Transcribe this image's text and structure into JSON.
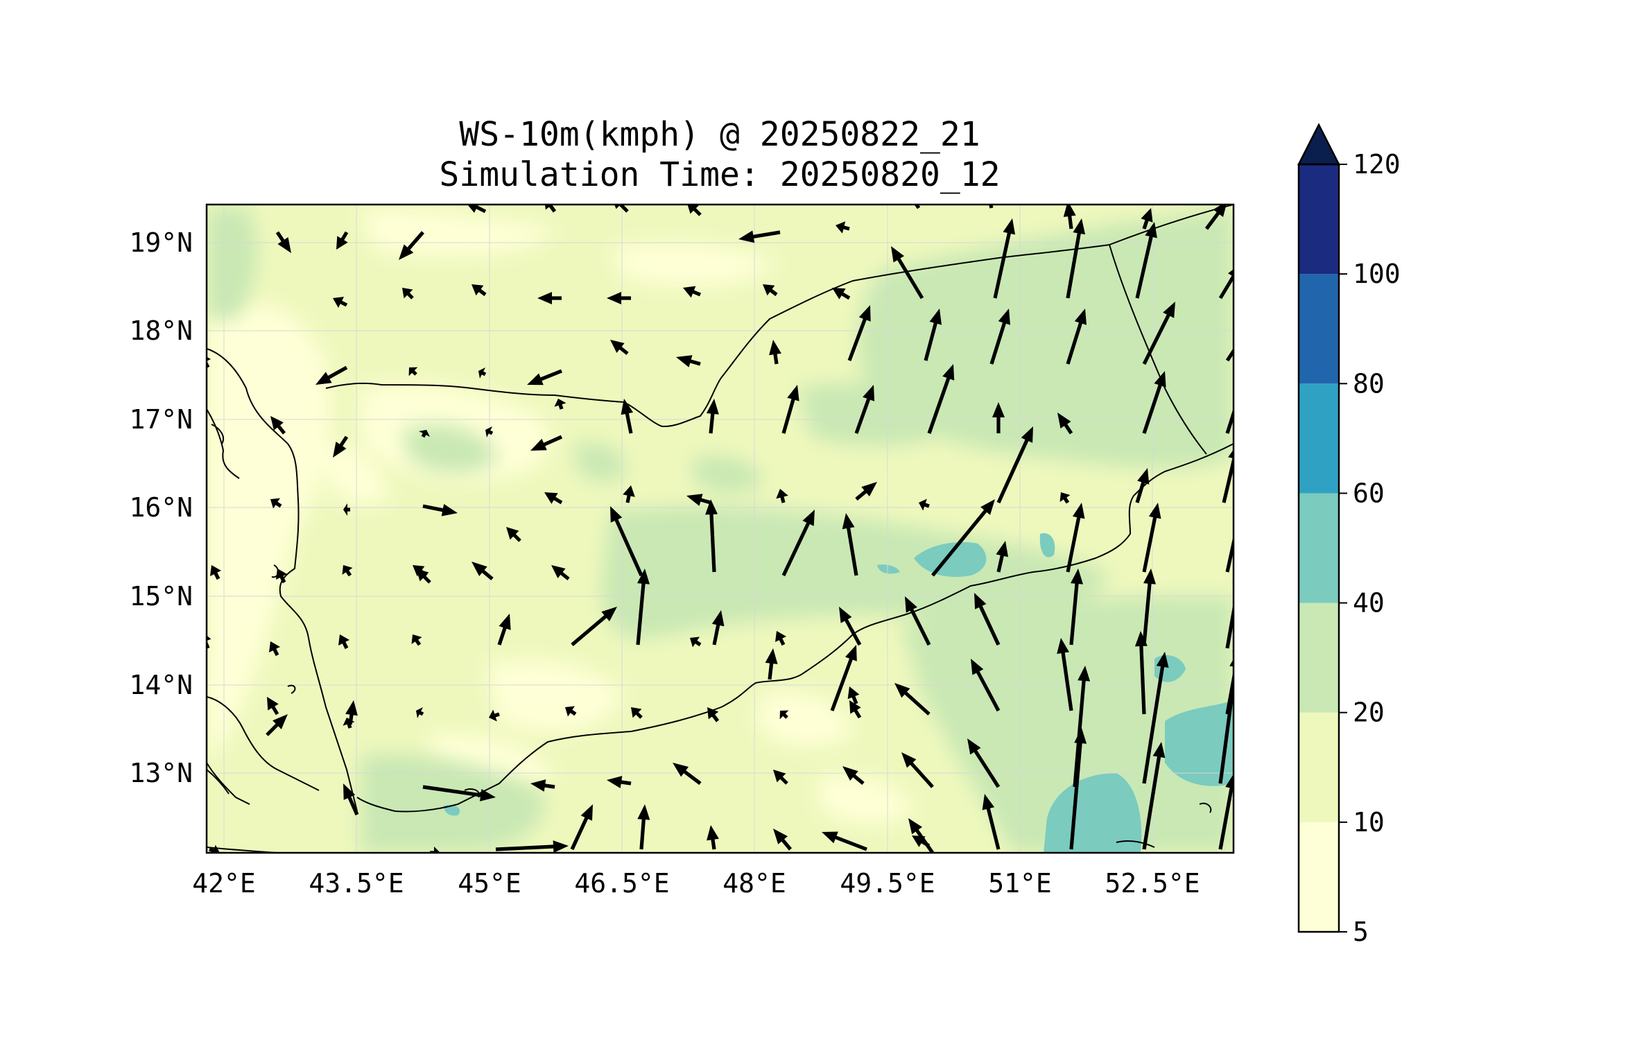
{
  "title_line1": "WS-10m(kmph) @ 20250822_21",
  "title_line2": "Simulation Time: 20250820_12",
  "chart_data": {
    "type": "heatmap",
    "map": "wind speed at 10 m with wind vectors, Yemen / southern Arabian Peninsula",
    "lon_range": [
      41.9,
      53.5
    ],
    "lat_range": [
      12.1,
      19.45
    ],
    "lon_ticks": [
      "42°E",
      "43.5°E",
      "45°E",
      "46.5°E",
      "48°E",
      "49.5°E",
      "51°E",
      "52.5°E"
    ],
    "lon_tick_values": [
      42,
      43.5,
      45,
      46.5,
      48,
      49.5,
      51,
      52.5
    ],
    "lat_ticks": [
      "13°N",
      "14°N",
      "15°N",
      "16°N",
      "17°N",
      "18°N",
      "19°N"
    ],
    "lat_tick_values": [
      13,
      14,
      15,
      16,
      17,
      18,
      19
    ],
    "grid": true,
    "colorbar": {
      "levels": [
        5,
        10,
        20,
        40,
        60,
        80,
        100,
        120
      ],
      "tick_labels": [
        "5",
        "10",
        "20",
        "40",
        "60",
        "80",
        "100",
        "120"
      ],
      "colors": [
        "#feffd6",
        "#eef8bd",
        "#c9e8b4",
        "#7bcbbf",
        "#2fa2c4",
        "#2166ac",
        "#1b2b80"
      ],
      "extend_color": "#0a1f4e",
      "extend": "max"
    },
    "strong_wind_region": "40-60 kmph patches near 15.3°N 50.5°E and along southeast coast near 52-53.5°E"
  }
}
